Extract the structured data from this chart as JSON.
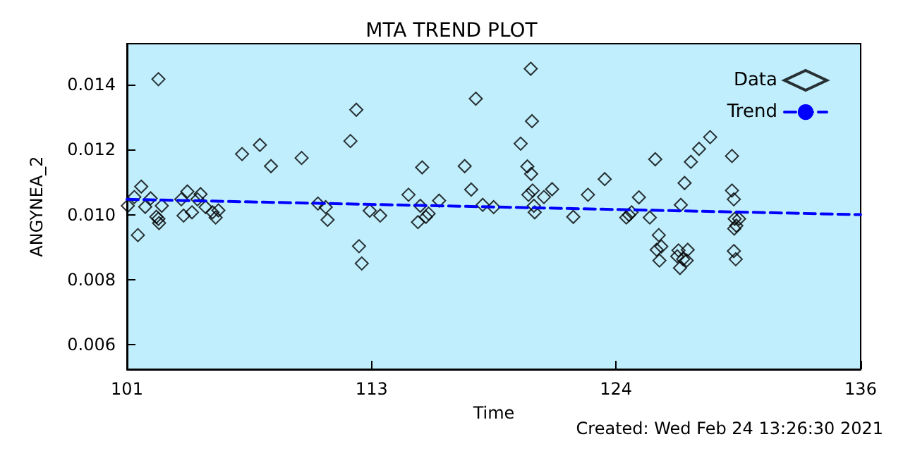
{
  "chart_data": {
    "type": "scatter",
    "title": "MTA TREND PLOT",
    "xlabel": "Time",
    "ylabel": "ANGYNEA_2",
    "annotations": [
      "Created: Wed Feb 24 13:26:30 2021"
    ],
    "xlim": [
      101,
      136
    ],
    "xticks": [
      101,
      {
        "value": 112.67,
        "label": "113"
      },
      {
        "value": 124.33,
        "label": "124"
      },
      136
    ],
    "ylim": [
      0.00525,
      0.01525
    ],
    "yticks": [
      0.006,
      0.008,
      {
        "value": 0.01,
        "label": "0.010"
      },
      0.012,
      0.014
    ],
    "grid": false,
    "legend": "top right",
    "series": [
      {
        "name": "Data",
        "color": "#000000",
        "marker": "diamond",
        "x": [
          101.04,
          101.35,
          101.68,
          101.52,
          101.87,
          102.13,
          102.5,
          102.4,
          102.53,
          102.66,
          102.5,
          103.59,
          103.88,
          103.7,
          104.1,
          104.36,
          104.51,
          104.75,
          105.08,
          105.23,
          105.36,
          106.49,
          107.34,
          107.87,
          109.33,
          110.11,
          110.48,
          110.57,
          111.66,
          111.94,
          112.07,
          112.2,
          112.58,
          113.08,
          114.43,
          115.08,
          114.99,
          114.88,
          115.26,
          115.39,
          115.89,
          117.11,
          117.42,
          117.64,
          117.97,
          118.49,
          119.78,
          120.1,
          120.28,
          120.26,
          120.32,
          120.35,
          120.15,
          120.41,
          120.45,
          120.89,
          121.28,
          122.29,
          122.99,
          123.79,
          124.82,
          124.95,
          125.07,
          125.42,
          125.94,
          126.2,
          126.37,
          126.27,
          126.49,
          126.4,
          127.31,
          127.38,
          127.53,
          127.75,
          127.7,
          127.25,
          127.42,
          127.6,
          127.9,
          128.29,
          128.82,
          129.86,
          129.86,
          129.95,
          129.99,
          130.07,
          130.2,
          129.97,
          129.95,
          130.04
        ],
        "values": [
          0.01027,
          0.01054,
          0.01086,
          0.00937,
          0.01024,
          0.0105,
          0.01416,
          0.00993,
          0.00974,
          0.01027,
          0.00987,
          0.01047,
          0.01071,
          0.00997,
          0.01007,
          0.01047,
          0.01063,
          0.01023,
          0.01007,
          0.00991,
          0.01013,
          0.01186,
          0.01214,
          0.01149,
          0.01174,
          0.01034,
          0.01023,
          0.00984,
          0.01226,
          0.01322,
          0.00903,
          0.0085,
          0.01012,
          0.00997,
          0.01061,
          0.01145,
          0.01027,
          0.00977,
          0.00993,
          0.01003,
          0.01043,
          0.01149,
          0.01077,
          0.01356,
          0.0103,
          0.01023,
          0.01218,
          0.01148,
          0.01125,
          0.01448,
          0.01287,
          0.01074,
          0.01061,
          0.01027,
          0.01007,
          0.01054,
          0.01078,
          0.00993,
          0.01061,
          0.01109,
          0.00991,
          0.00999,
          0.01007,
          0.01053,
          0.00991,
          0.0117,
          0.00937,
          0.00892,
          0.00902,
          0.00859,
          0.0089,
          0.00836,
          0.00863,
          0.00892,
          0.00859,
          0.00872,
          0.0103,
          0.01097,
          0.01162,
          0.01202,
          0.01238,
          0.0118,
          0.01074,
          0.01047,
          0.00987,
          0.00966,
          0.00987,
          0.00957,
          0.00888,
          0.00863
        ]
      },
      {
        "name": "Trend",
        "type": "line",
        "color": "#0000ff",
        "marker": "none",
        "line_style": "dashed",
        "x": [
          101,
          136
        ],
        "values": [
          0.01047,
          0.01
        ]
      }
    ]
  }
}
